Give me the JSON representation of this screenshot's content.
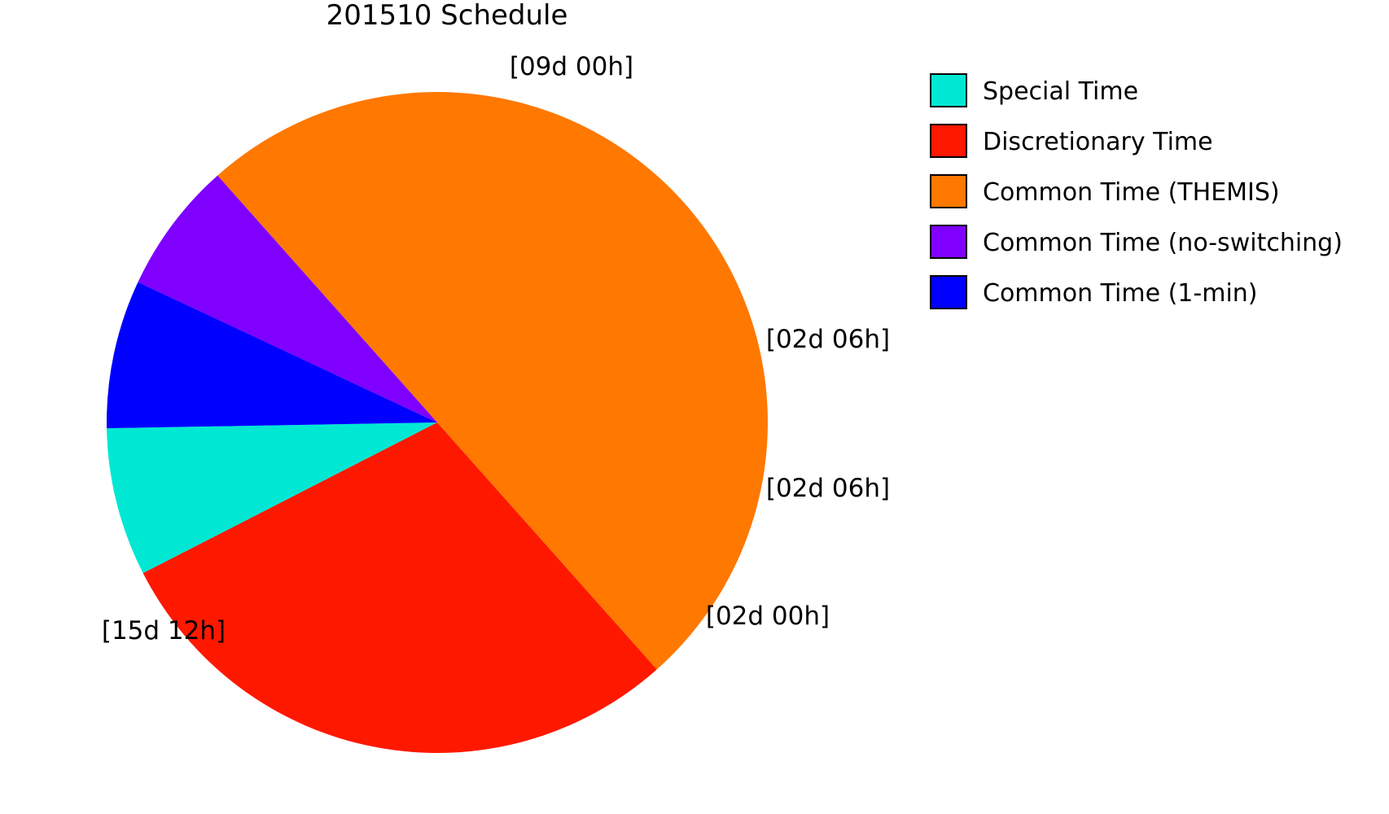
{
  "chart_data": {
    "type": "pie",
    "title": "201510 Schedule",
    "unit": "days",
    "slices": [
      {
        "name": "Special Time",
        "value": 2.25,
        "label": "[02d 06h]",
        "color": "#00e8d4"
      },
      {
        "name": "Discretionary Time",
        "value": 9.0,
        "label": "[09d 00h]",
        "color": "#ff1800"
      },
      {
        "name": "Common Time (THEMIS)",
        "value": 15.5,
        "label": "[15d 12h]",
        "color": "#ff7800"
      },
      {
        "name": "Common Time (no-switching)",
        "value": 2.0,
        "label": "[02d 00h]",
        "color": "#7f00ff"
      },
      {
        "name": "Common Time (1-min)",
        "value": 2.25,
        "label": "[02d 06h]",
        "color": "#0000ff"
      }
    ],
    "legend": {
      "placement": "top-right",
      "items": [
        "Special Time",
        "Discretionary Time",
        "Common Time (THEMIS)",
        "Common Time (no-switching)",
        "Common Time (1-min)"
      ]
    }
  }
}
